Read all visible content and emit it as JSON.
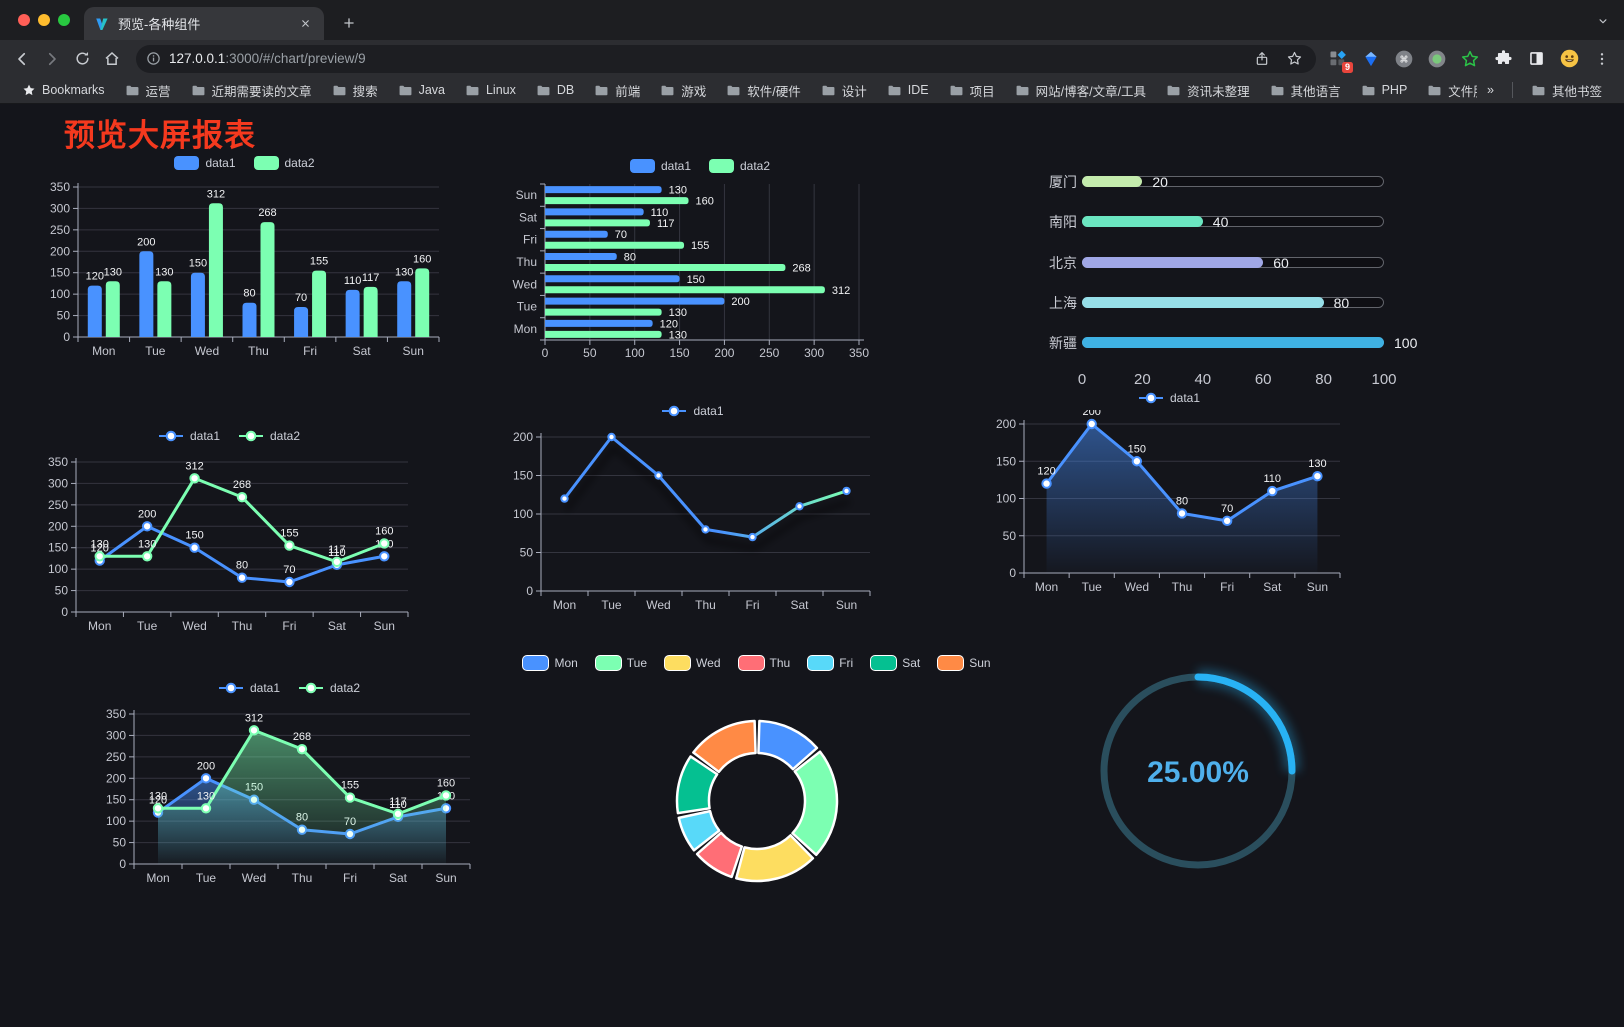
{
  "browser": {
    "tab": {
      "title": "预览-各种组件"
    },
    "address": {
      "host": "127.0.0.1",
      "rest": ":3000/#/chart/preview/9"
    },
    "toolbar": {
      "extension_badge": "9"
    },
    "bookmarks_bar": {
      "bookmarks_label": "Bookmarks",
      "folders": [
        "运营",
        "近期需要读的文章",
        "搜索",
        "Java",
        "Linux",
        "DB",
        "前端",
        "游戏",
        "软件/硬件",
        "设计",
        "IDE",
        "项目",
        "网站/博客/文章/工具",
        "资讯未整理",
        "其他语言",
        "PHP",
        "文件服务器"
      ],
      "overflow": "»",
      "other_bookmarks": "其他书签"
    }
  },
  "page": {
    "title": "预览大屏报表",
    "title_color": "#f5391e",
    "background": "#14151b"
  },
  "chart_data": [
    {
      "el": "c1",
      "type": "bar",
      "title": "",
      "categories": [
        "Mon",
        "Tue",
        "Wed",
        "Thu",
        "Fri",
        "Sat",
        "Sun"
      ],
      "series": [
        {
          "name": "data1",
          "color": "#4992ff",
          "values": [
            120,
            200,
            150,
            80,
            70,
            110,
            130
          ]
        },
        {
          "name": "data2",
          "color": "#7cffb2",
          "values": [
            130,
            130,
            312,
            268,
            155,
            117,
            160
          ]
        }
      ],
      "ylim": [
        0,
        350
      ],
      "ystep": 50,
      "labels": true,
      "grid": true,
      "legend_position": "top"
    },
    {
      "el": "c2",
      "type": "hbar",
      "title": "",
      "categories": [
        "Mon",
        "Tue",
        "Wed",
        "Thu",
        "Fri",
        "Sat",
        "Sun"
      ],
      "series": [
        {
          "name": "data1",
          "color": "#4992ff",
          "values": [
            120,
            200,
            150,
            80,
            70,
            110,
            130
          ]
        },
        {
          "name": "data2",
          "color": "#7cffb2",
          "values": [
            130,
            130,
            312,
            268,
            155,
            117,
            160
          ]
        }
      ],
      "xlim": [
        0,
        350
      ],
      "xstep": 50,
      "labels": true,
      "grid": true,
      "legend_position": "top"
    },
    {
      "el": "c3",
      "type": "progress",
      "max": 100,
      "ticks": [
        0,
        20,
        40,
        60,
        80,
        100
      ],
      "items": [
        {
          "label": "厦门",
          "value": 20,
          "color": "#c4ebad"
        },
        {
          "label": "南阳",
          "value": 40,
          "color": "#6be6c1"
        },
        {
          "label": "北京",
          "value": 60,
          "color": "#a0a7e6"
        },
        {
          "label": "上海",
          "value": 80,
          "color": "#96dee8"
        },
        {
          "label": "新疆",
          "value": 100,
          "color": "#3fb1e3"
        }
      ]
    },
    {
      "el": "c4",
      "type": "line",
      "categories": [
        "Mon",
        "Tue",
        "Wed",
        "Thu",
        "Fri",
        "Sat",
        "Sun"
      ],
      "series": [
        {
          "name": "data1",
          "color": "#4992ff",
          "values": [
            120,
            200,
            150,
            80,
            70,
            110,
            130
          ]
        },
        {
          "name": "data2",
          "color": "#7cffb2",
          "values": [
            130,
            130,
            312,
            268,
            155,
            117,
            160
          ]
        }
      ],
      "ylim": [
        0,
        350
      ],
      "ystep": 50,
      "labels": true,
      "legend_position": "top"
    },
    {
      "el": "c5",
      "type": "line",
      "shadow": true,
      "categories": [
        "Mon",
        "Tue",
        "Wed",
        "Thu",
        "Fri",
        "Sat",
        "Sun"
      ],
      "series": [
        {
          "name": "data1",
          "color": "#4992ff",
          "gradient": [
            "#4992ff",
            "#7cffb2"
          ],
          "values": [
            120,
            200,
            150,
            80,
            70,
            110,
            130
          ]
        }
      ],
      "ylim": [
        0,
        200
      ],
      "ystep": 50,
      "labels": false,
      "legend_position": "top"
    },
    {
      "el": "c6",
      "type": "line",
      "categories": [
        "Mon",
        "Tue",
        "Wed",
        "Thu",
        "Fri",
        "Sat",
        "Sun"
      ],
      "series": [
        {
          "name": "data1",
          "color": "#4992ff",
          "area": true,
          "values": [
            120,
            200,
            150,
            80,
            70,
            110,
            130
          ]
        }
      ],
      "ylim": [
        0,
        200
      ],
      "ystep": 50,
      "labels": true,
      "legend_position": "top"
    },
    {
      "el": "c7",
      "type": "line",
      "categories": [
        "Mon",
        "Tue",
        "Wed",
        "Thu",
        "Fri",
        "Sat",
        "Sun"
      ],
      "series": [
        {
          "name": "data1",
          "color": "#4992ff",
          "area": true,
          "values": [
            120,
            200,
            150,
            80,
            70,
            110,
            130
          ]
        },
        {
          "name": "data2",
          "color": "#7cffb2",
          "area": true,
          "values": [
            130,
            130,
            312,
            268,
            155,
            117,
            160
          ]
        }
      ],
      "ylim": [
        0,
        350
      ],
      "ystep": 50,
      "labels": true,
      "legend_position": "top"
    },
    {
      "el": "c8",
      "type": "donut",
      "categories": [
        "Mon",
        "Tue",
        "Wed",
        "Thu",
        "Fri",
        "Sat",
        "Sun"
      ],
      "values": [
        120,
        200,
        150,
        80,
        70,
        110,
        130
      ],
      "colors": [
        "#4992ff",
        "#7cffb2",
        "#fddd60",
        "#ff6e76",
        "#58d9f9",
        "#05c091",
        "#ff8a45"
      ],
      "legend_position": "top"
    },
    {
      "el": "c9",
      "type": "gauge",
      "percent": 25,
      "text": "25.00%",
      "color": "#28b2f4",
      "track": "#2a4e5d",
      "text_color": "#4fb0ec"
    }
  ]
}
